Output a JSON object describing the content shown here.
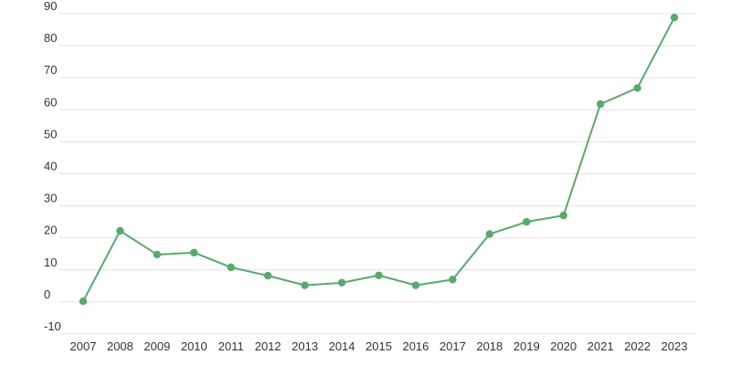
{
  "chart_data": {
    "type": "line",
    "title": "",
    "xlabel": "",
    "ylabel": "",
    "x": [
      "2007",
      "2008",
      "2009",
      "2010",
      "2011",
      "2012",
      "2013",
      "2014",
      "2015",
      "2016",
      "2017",
      "2018",
      "2019",
      "2020",
      "2021",
      "2022",
      "2023"
    ],
    "series": [
      {
        "values": [
          0.2,
          22.2,
          14.8,
          15.4,
          10.8,
          8.2,
          5.2,
          6.0,
          8.3,
          5.2,
          7.0,
          21.2,
          25.0,
          27.0,
          61.8,
          66.8,
          88.8
        ],
        "color": "#5aa96b"
      }
    ],
    "yticks": [
      "90",
      "80",
      "70",
      "60",
      "50",
      "40",
      "30",
      "20",
      "10",
      "0",
      "-10"
    ],
    "ylim": [
      -10,
      90
    ],
    "grid": true,
    "legend": "none",
    "colors": {
      "line": "#5aa96b",
      "grid": "#e3e3e3",
      "text": "#333333"
    }
  }
}
